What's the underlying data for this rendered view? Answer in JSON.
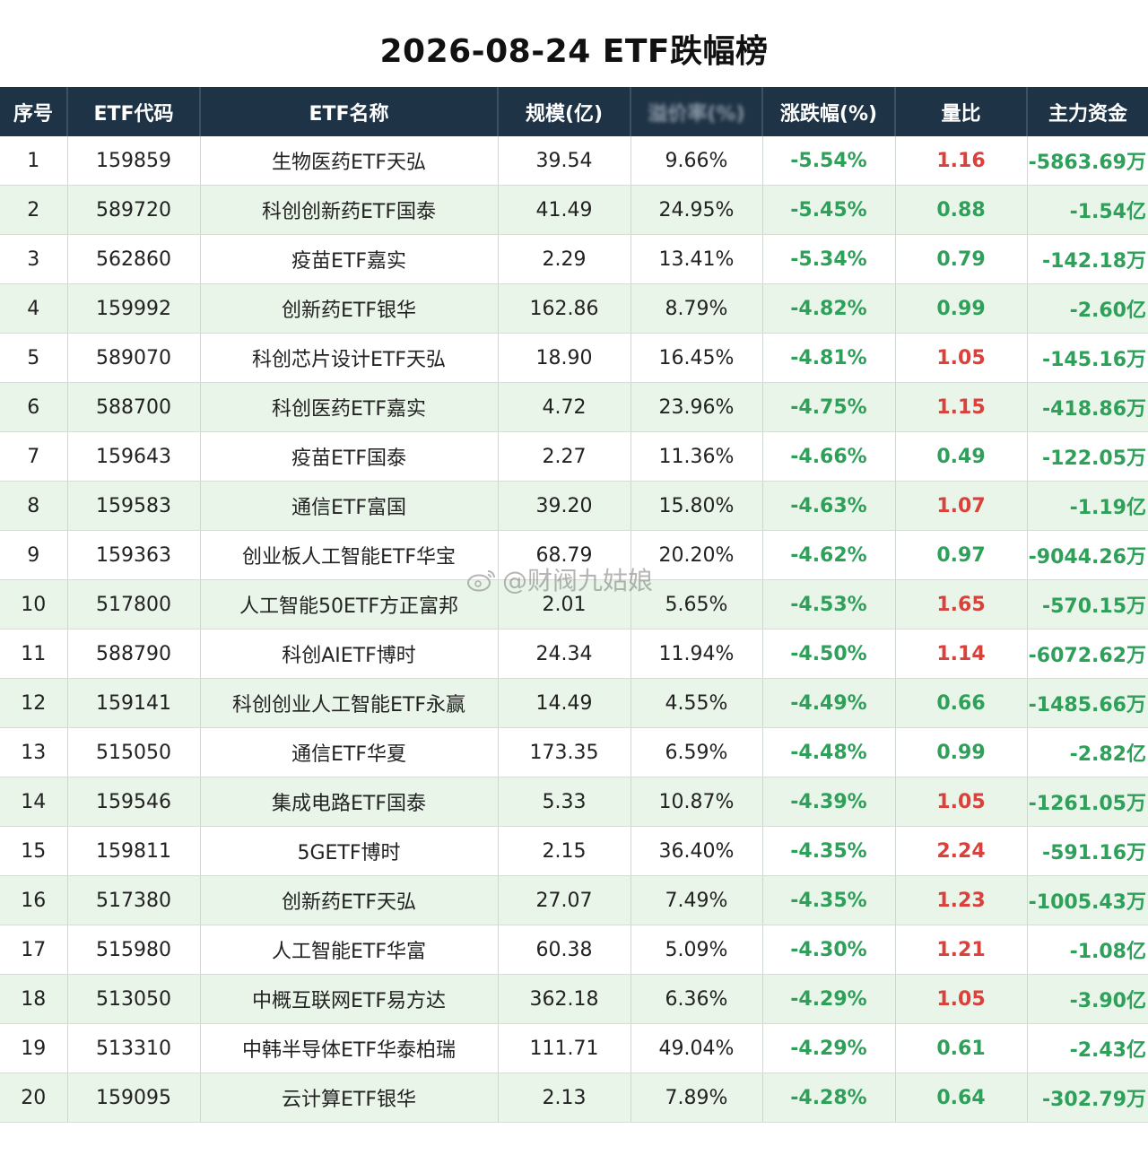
{
  "title": "2026-08-24 ETF跌幅榜",
  "watermark": "@财阀九姑娘",
  "colors": {
    "header_bg": "#1f3346",
    "stripe": "#eaf5e9",
    "negative": "#2ea05a",
    "positive": "#d9413a"
  },
  "table": {
    "headers": [
      "序号",
      "ETF代码",
      "ETF名称",
      "规模(亿)",
      "溢价率(%)",
      "涨跌幅(%)",
      "量比",
      "主力资金"
    ],
    "rows": [
      {
        "no": "1",
        "code": "159859",
        "name": "生物医药ETF天弘",
        "scale": "39.54",
        "col5": "9.66%",
        "change": "-5.54%",
        "ratio": "1.16",
        "fund": "-5863.69万",
        "ratio_up": true
      },
      {
        "no": "2",
        "code": "589720",
        "name": "科创创新药ETF国泰",
        "scale": "41.49",
        "col5": "24.95%",
        "change": "-5.45%",
        "ratio": "0.88",
        "fund": "-1.54亿",
        "ratio_up": false
      },
      {
        "no": "3",
        "code": "562860",
        "name": "疫苗ETF嘉实",
        "scale": "2.29",
        "col5": "13.41%",
        "change": "-5.34%",
        "ratio": "0.79",
        "fund": "-142.18万",
        "ratio_up": false
      },
      {
        "no": "4",
        "code": "159992",
        "name": "创新药ETF银华",
        "scale": "162.86",
        "col5": "8.79%",
        "change": "-4.82%",
        "ratio": "0.99",
        "fund": "-2.60亿",
        "ratio_up": false
      },
      {
        "no": "5",
        "code": "589070",
        "name": "科创芯片设计ETF天弘",
        "scale": "18.90",
        "col5": "16.45%",
        "change": "-4.81%",
        "ratio": "1.05",
        "fund": "-145.16万",
        "ratio_up": true
      },
      {
        "no": "6",
        "code": "588700",
        "name": "科创医药ETF嘉实",
        "scale": "4.72",
        "col5": "23.96%",
        "change": "-4.75%",
        "ratio": "1.15",
        "fund": "-418.86万",
        "ratio_up": true
      },
      {
        "no": "7",
        "code": "159643",
        "name": "疫苗ETF国泰",
        "scale": "2.27",
        "col5": "11.36%",
        "change": "-4.66%",
        "ratio": "0.49",
        "fund": "-122.05万",
        "ratio_up": false
      },
      {
        "no": "8",
        "code": "159583",
        "name": "通信ETF富国",
        "scale": "39.20",
        "col5": "15.80%",
        "change": "-4.63%",
        "ratio": "1.07",
        "fund": "-1.19亿",
        "ratio_up": true
      },
      {
        "no": "9",
        "code": "159363",
        "name": "创业板人工智能ETF华宝",
        "scale": "68.79",
        "col5": "20.20%",
        "change": "-4.62%",
        "ratio": "0.97",
        "fund": "-9044.26万",
        "ratio_up": false
      },
      {
        "no": "10",
        "code": "517800",
        "name": "人工智能50ETF方正富邦",
        "scale": "2.01",
        "col5": "5.65%",
        "change": "-4.53%",
        "ratio": "1.65",
        "fund": "-570.15万",
        "ratio_up": true
      },
      {
        "no": "11",
        "code": "588790",
        "name": "科创AIETF博时",
        "scale": "24.34",
        "col5": "11.94%",
        "change": "-4.50%",
        "ratio": "1.14",
        "fund": "-6072.62万",
        "ratio_up": true
      },
      {
        "no": "12",
        "code": "159141",
        "name": "科创创业人工智能ETF永赢",
        "scale": "14.49",
        "col5": "4.55%",
        "change": "-4.49%",
        "ratio": "0.66",
        "fund": "-1485.66万",
        "ratio_up": false
      },
      {
        "no": "13",
        "code": "515050",
        "name": "通信ETF华夏",
        "scale": "173.35",
        "col5": "6.59%",
        "change": "-4.48%",
        "ratio": "0.99",
        "fund": "-2.82亿",
        "ratio_up": false
      },
      {
        "no": "14",
        "code": "159546",
        "name": "集成电路ETF国泰",
        "scale": "5.33",
        "col5": "10.87%",
        "change": "-4.39%",
        "ratio": "1.05",
        "fund": "-1261.05万",
        "ratio_up": true
      },
      {
        "no": "15",
        "code": "159811",
        "name": "5GETF博时",
        "scale": "2.15",
        "col5": "36.40%",
        "change": "-4.35%",
        "ratio": "2.24",
        "fund": "-591.16万",
        "ratio_up": true
      },
      {
        "no": "16",
        "code": "517380",
        "name": "创新药ETF天弘",
        "scale": "27.07",
        "col5": "7.49%",
        "change": "-4.35%",
        "ratio": "1.23",
        "fund": "-1005.43万",
        "ratio_up": true
      },
      {
        "no": "17",
        "code": "515980",
        "name": "人工智能ETF华富",
        "scale": "60.38",
        "col5": "5.09%",
        "change": "-4.30%",
        "ratio": "1.21",
        "fund": "-1.08亿",
        "ratio_up": true
      },
      {
        "no": "18",
        "code": "513050",
        "name": "中概互联网ETF易方达",
        "scale": "362.18",
        "col5": "6.36%",
        "change": "-4.29%",
        "ratio": "1.05",
        "fund": "-3.90亿",
        "ratio_up": true
      },
      {
        "no": "19",
        "code": "513310",
        "name": "中韩半导体ETF华泰柏瑞",
        "scale": "111.71",
        "col5": "49.04%",
        "change": "-4.29%",
        "ratio": "0.61",
        "fund": "-2.43亿",
        "ratio_up": false
      },
      {
        "no": "20",
        "code": "159095",
        "name": "云计算ETF银华",
        "scale": "2.13",
        "col5": "7.89%",
        "change": "-4.28%",
        "ratio": "0.64",
        "fund": "-302.79万",
        "ratio_up": false
      }
    ]
  }
}
